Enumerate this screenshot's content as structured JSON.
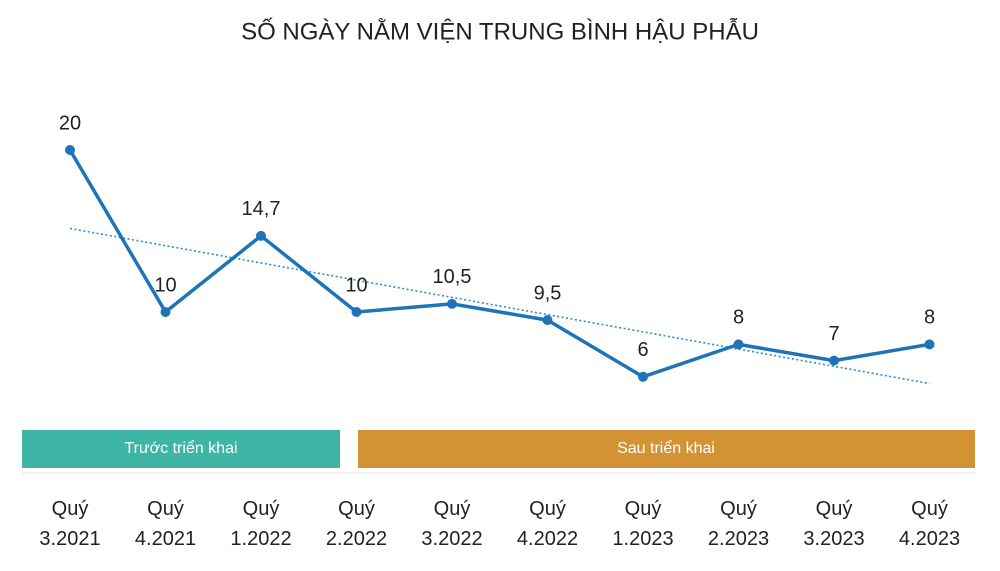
{
  "chart_data": {
    "type": "line",
    "title": "SỐ NGÀY NẰM VIỆN TRUNG BÌNH HẬU PHẪU",
    "categories": [
      "Quý 3.2021",
      "Quý 4.2021",
      "Quý 1.2022",
      "Quý 2.2022",
      "Quý 3.2022",
      "Quý 4.2022",
      "Quý 1.2023",
      "Quý 2.2023",
      "Quý 3.2023",
      "Quý 4.2023"
    ],
    "series": [
      {
        "color": "#1f73b7",
        "values": [
          20,
          10,
          14.7,
          10,
          10.5,
          9.5,
          6,
          8,
          7,
          8
        ],
        "value_labels": [
          "20",
          "10",
          "14,7",
          "10",
          "10,5",
          "9,5",
          "6",
          "8",
          "7",
          "8"
        ]
      }
    ],
    "trendline": {
      "kind": "linear",
      "color": "#2a8fc9"
    },
    "phases": [
      {
        "label": "Trước triển khai",
        "color": "#3fb5a6"
      },
      {
        "label": "Sau triển khai",
        "color": "#d39334"
      }
    ]
  }
}
